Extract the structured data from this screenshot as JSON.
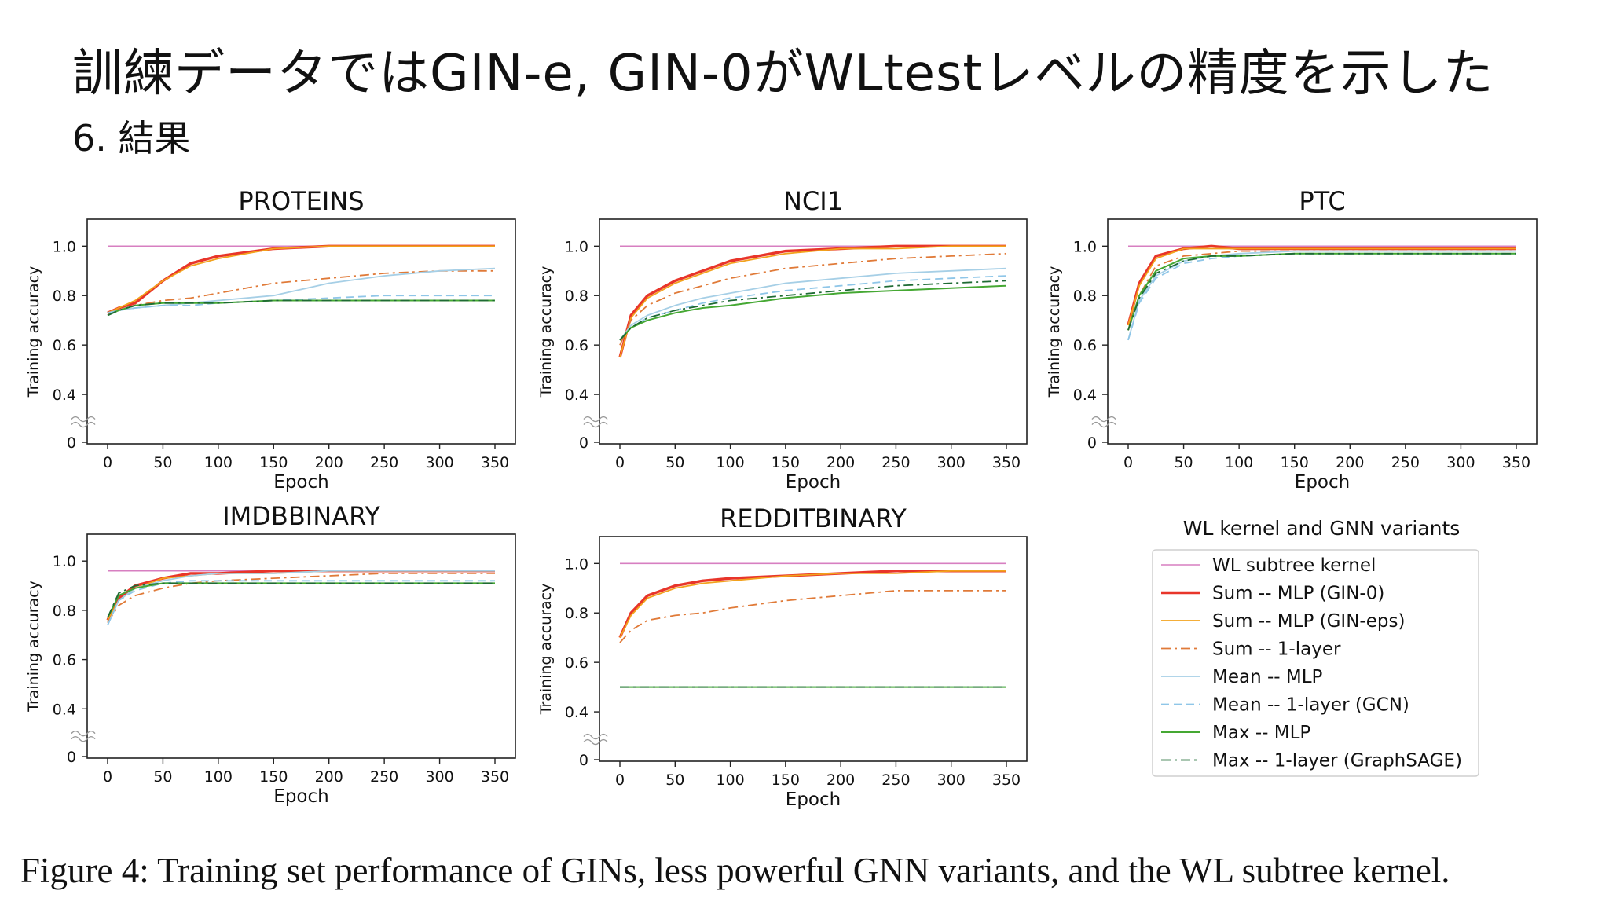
{
  "slide": {
    "title": "訓練データではGIN-e, GIN-0がWLtestレベルの精度を示した",
    "subtitle": "6. 結果",
    "caption": "Figure 4: Training set performance of GINs, less powerful GNN variants, and the WL subtree kernel."
  },
  "legend": {
    "title": "WL kernel and GNN variants",
    "entries": [
      {
        "label": "WL subtree kernel",
        "color": "#d77fc1",
        "style": "solid",
        "width": 1.6
      },
      {
        "label": "Sum -- MLP (GIN-0)",
        "color": "#e8352a",
        "style": "solid",
        "width": 3.4
      },
      {
        "label": "Sum -- MLP (GIN-eps)",
        "color": "#f2a21d",
        "style": "solid",
        "width": 1.8
      },
      {
        "label": "Sum -- 1-layer",
        "color": "#e07a38",
        "style": "dashdot",
        "width": 1.8
      },
      {
        "label": "Mean -- MLP",
        "color": "#a6cfe6",
        "style": "solid",
        "width": 1.8
      },
      {
        "label": "Mean -- 1-layer (GCN)",
        "color": "#8fc6e8",
        "style": "dashed",
        "width": 1.8
      },
      {
        "label": "Max -- MLP",
        "color": "#45a833",
        "style": "solid",
        "width": 2.0
      },
      {
        "label": "Max -- 1-layer (GraphSAGE)",
        "color": "#1f6b34",
        "style": "dashdot",
        "width": 1.8
      }
    ]
  },
  "chart_data": [
    {
      "type": "line",
      "title": "PROTEINS",
      "xlabel": "Epoch",
      "ylabel": "Training accuracy",
      "xlim": [
        0,
        350
      ],
      "ylim": [
        0,
        1.1
      ],
      "axis_break": "between 0 and 0.4",
      "xticks": [
        "0",
        "50",
        "100",
        "150",
        "200",
        "250",
        "300",
        "350"
      ],
      "yticks": [
        "0",
        "0.4",
        "0.6",
        "0.8",
        "1.0"
      ],
      "x": [
        0,
        10,
        25,
        50,
        75,
        100,
        150,
        200,
        250,
        300,
        350
      ],
      "series": [
        {
          "name": "WL subtree kernel",
          "values": [
            1.0,
            1.0,
            1.0,
            1.0,
            1.0,
            1.0,
            1.0,
            1.0,
            1.0,
            1.0,
            1.0
          ]
        },
        {
          "name": "Sum -- MLP (GIN-0)",
          "values": [
            0.73,
            0.75,
            0.77,
            0.86,
            0.93,
            0.96,
            0.99,
            1.0,
            1.0,
            1.0,
            1.0
          ]
        },
        {
          "name": "Sum -- MLP (GIN-eps)",
          "values": [
            0.73,
            0.75,
            0.78,
            0.86,
            0.92,
            0.95,
            0.99,
            1.0,
            1.0,
            1.0,
            1.0
          ]
        },
        {
          "name": "Sum -- 1-layer",
          "values": [
            0.73,
            0.74,
            0.76,
            0.78,
            0.79,
            0.81,
            0.85,
            0.87,
            0.89,
            0.9,
            0.9
          ]
        },
        {
          "name": "Mean -- MLP",
          "values": [
            0.73,
            0.74,
            0.75,
            0.76,
            0.77,
            0.78,
            0.8,
            0.85,
            0.88,
            0.9,
            0.91
          ]
        },
        {
          "name": "Mean -- 1-layer (GCN)",
          "values": [
            0.73,
            0.74,
            0.75,
            0.76,
            0.76,
            0.77,
            0.78,
            0.79,
            0.8,
            0.8,
            0.8
          ]
        },
        {
          "name": "Max -- MLP",
          "values": [
            0.72,
            0.74,
            0.76,
            0.77,
            0.77,
            0.77,
            0.78,
            0.78,
            0.78,
            0.78,
            0.78
          ]
        },
        {
          "name": "Max -- 1-layer (GraphSAGE)",
          "values": [
            0.72,
            0.74,
            0.76,
            0.77,
            0.77,
            0.77,
            0.78,
            0.78,
            0.78,
            0.78,
            0.78
          ]
        }
      ]
    },
    {
      "type": "line",
      "title": "NCI1",
      "xlabel": "Epoch",
      "ylabel": "Training accuracy",
      "xlim": [
        0,
        350
      ],
      "ylim": [
        0,
        1.1
      ],
      "axis_break": "between 0 and 0.4",
      "xticks": [
        "0",
        "50",
        "100",
        "150",
        "200",
        "250",
        "300",
        "350"
      ],
      "yticks": [
        "0",
        "0.4",
        "0.6",
        "0.8",
        "1.0"
      ],
      "x": [
        0,
        10,
        25,
        50,
        75,
        100,
        150,
        200,
        250,
        300,
        350
      ],
      "series": [
        {
          "name": "WL subtree kernel",
          "values": [
            1.0,
            1.0,
            1.0,
            1.0,
            1.0,
            1.0,
            1.0,
            1.0,
            1.0,
            1.0,
            1.0
          ]
        },
        {
          "name": "Sum -- MLP (GIN-0)",
          "values": [
            0.55,
            0.72,
            0.8,
            0.86,
            0.9,
            0.94,
            0.98,
            0.99,
            1.0,
            1.0,
            1.0
          ]
        },
        {
          "name": "Sum -- MLP (GIN-eps)",
          "values": [
            0.55,
            0.71,
            0.79,
            0.85,
            0.89,
            0.93,
            0.97,
            0.99,
            0.99,
            1.0,
            1.0
          ]
        },
        {
          "name": "Sum -- 1-layer",
          "values": [
            0.6,
            0.7,
            0.76,
            0.81,
            0.84,
            0.87,
            0.91,
            0.93,
            0.95,
            0.96,
            0.97
          ]
        },
        {
          "name": "Mean -- MLP",
          "values": [
            0.62,
            0.68,
            0.72,
            0.76,
            0.79,
            0.81,
            0.85,
            0.87,
            0.89,
            0.9,
            0.91
          ]
        },
        {
          "name": "Mean -- 1-layer (GCN)",
          "values": [
            0.62,
            0.67,
            0.71,
            0.74,
            0.77,
            0.79,
            0.82,
            0.84,
            0.86,
            0.87,
            0.88
          ]
        },
        {
          "name": "Max -- MLP",
          "values": [
            0.62,
            0.67,
            0.7,
            0.73,
            0.75,
            0.76,
            0.79,
            0.81,
            0.82,
            0.83,
            0.84
          ]
        },
        {
          "name": "Max -- 1-layer (GraphSAGE)",
          "values": [
            0.62,
            0.67,
            0.71,
            0.74,
            0.76,
            0.78,
            0.8,
            0.82,
            0.84,
            0.85,
            0.86
          ]
        }
      ]
    },
    {
      "type": "line",
      "title": "PTC",
      "xlabel": "Epoch",
      "ylabel": "Training accuracy",
      "xlim": [
        0,
        350
      ],
      "ylim": [
        0,
        1.1
      ],
      "axis_break": "between 0 and 0.4",
      "xticks": [
        "0",
        "50",
        "100",
        "150",
        "200",
        "250",
        "300",
        "350"
      ],
      "yticks": [
        "0",
        "0.4",
        "0.6",
        "0.8",
        "1.0"
      ],
      "x": [
        0,
        10,
        25,
        50,
        75,
        100,
        150,
        200,
        250,
        300,
        350
      ],
      "series": [
        {
          "name": "WL subtree kernel",
          "values": [
            1.0,
            1.0,
            1.0,
            1.0,
            1.0,
            1.0,
            1.0,
            1.0,
            1.0,
            1.0,
            1.0
          ]
        },
        {
          "name": "Sum -- MLP (GIN-0)",
          "values": [
            0.68,
            0.85,
            0.96,
            0.99,
            1.0,
            0.99,
            0.99,
            0.99,
            0.99,
            0.99,
            0.99
          ]
        },
        {
          "name": "Sum -- MLP (GIN-eps)",
          "values": [
            0.68,
            0.84,
            0.95,
            0.99,
            0.99,
            0.99,
            0.99,
            0.99,
            0.99,
            0.99,
            0.99
          ]
        },
        {
          "name": "Sum -- 1-layer",
          "values": [
            0.66,
            0.8,
            0.92,
            0.96,
            0.97,
            0.98,
            0.98,
            0.98,
            0.98,
            0.98,
            0.98
          ]
        },
        {
          "name": "Mean -- MLP",
          "values": [
            0.62,
            0.78,
            0.88,
            0.94,
            0.96,
            0.97,
            0.98,
            0.98,
            0.98,
            0.98,
            0.98
          ]
        },
        {
          "name": "Mean -- 1-layer (GCN)",
          "values": [
            0.62,
            0.77,
            0.87,
            0.93,
            0.95,
            0.96,
            0.97,
            0.97,
            0.97,
            0.97,
            0.97
          ]
        },
        {
          "name": "Max -- MLP",
          "values": [
            0.66,
            0.8,
            0.9,
            0.95,
            0.96,
            0.96,
            0.97,
            0.97,
            0.97,
            0.97,
            0.97
          ]
        },
        {
          "name": "Max -- 1-layer (GraphSAGE)",
          "values": [
            0.66,
            0.79,
            0.89,
            0.94,
            0.96,
            0.96,
            0.97,
            0.97,
            0.97,
            0.97,
            0.97
          ]
        }
      ]
    },
    {
      "type": "line",
      "title": "IMDBBINARY",
      "xlabel": "Epoch",
      "ylabel": "Training accuracy",
      "xlim": [
        0,
        350
      ],
      "ylim": [
        0,
        1.1
      ],
      "axis_break": "between 0 and 0.4",
      "xticks": [
        "0",
        "50",
        "100",
        "150",
        "200",
        "250",
        "300",
        "350"
      ],
      "yticks": [
        "0",
        "0.4",
        "0.6",
        "0.8",
        "1.0"
      ],
      "x": [
        0,
        10,
        25,
        50,
        75,
        100,
        150,
        200,
        250,
        300,
        350
      ],
      "series": [
        {
          "name": "WL subtree kernel",
          "values": [
            0.96,
            0.96,
            0.96,
            0.96,
            0.96,
            0.96,
            0.96,
            0.96,
            0.96,
            0.96,
            0.96
          ]
        },
        {
          "name": "Sum -- MLP (GIN-0)",
          "values": [
            0.76,
            0.85,
            0.9,
            0.93,
            0.95,
            0.95,
            0.96,
            0.96,
            0.96,
            0.96,
            0.96
          ]
        },
        {
          "name": "Sum -- MLP (GIN-eps)",
          "values": [
            0.76,
            0.84,
            0.89,
            0.93,
            0.94,
            0.95,
            0.95,
            0.96,
            0.96,
            0.96,
            0.96
          ]
        },
        {
          "name": "Sum -- 1-layer",
          "values": [
            0.75,
            0.82,
            0.86,
            0.89,
            0.91,
            0.92,
            0.93,
            0.94,
            0.95,
            0.95,
            0.95
          ]
        },
        {
          "name": "Mean -- MLP",
          "values": [
            0.74,
            0.84,
            0.89,
            0.92,
            0.94,
            0.95,
            0.95,
            0.96,
            0.96,
            0.96,
            0.96
          ]
        },
        {
          "name": "Mean -- 1-layer (GCN)",
          "values": [
            0.74,
            0.84,
            0.88,
            0.91,
            0.92,
            0.92,
            0.92,
            0.92,
            0.92,
            0.92,
            0.92
          ]
        },
        {
          "name": "Max -- MLP",
          "values": [
            0.77,
            0.86,
            0.89,
            0.91,
            0.91,
            0.91,
            0.91,
            0.91,
            0.91,
            0.91,
            0.91
          ]
        },
        {
          "name": "Max -- 1-layer (GraphSAGE)",
          "values": [
            0.77,
            0.87,
            0.9,
            0.91,
            0.91,
            0.91,
            0.91,
            0.91,
            0.91,
            0.91,
            0.91
          ]
        }
      ]
    },
    {
      "type": "line",
      "title": "REDDITBINARY",
      "xlabel": "Epoch",
      "ylabel": "Training accuracy",
      "xlim": [
        0,
        350
      ],
      "ylim": [
        0,
        1.1
      ],
      "axis_break": "between 0 and 0.4",
      "xticks": [
        "0",
        "50",
        "100",
        "150",
        "200",
        "250",
        "300",
        "350"
      ],
      "yticks": [
        "0",
        "0.4",
        "0.6",
        "0.8",
        "1.0"
      ],
      "x": [
        0,
        10,
        25,
        50,
        75,
        100,
        150,
        200,
        250,
        300,
        350
      ],
      "series": [
        {
          "name": "WL subtree kernel",
          "values": [
            1.0,
            1.0,
            1.0,
            1.0,
            1.0,
            1.0,
            1.0,
            1.0,
            1.0,
            1.0,
            1.0
          ]
        },
        {
          "name": "Sum -- MLP (GIN-0)",
          "values": [
            0.7,
            0.8,
            0.87,
            0.91,
            0.93,
            0.94,
            0.95,
            0.96,
            0.97,
            0.97,
            0.97
          ]
        },
        {
          "name": "Sum -- MLP (GIN-eps)",
          "values": [
            0.7,
            0.79,
            0.86,
            0.9,
            0.92,
            0.93,
            0.95,
            0.96,
            0.96,
            0.97,
            0.97
          ]
        },
        {
          "name": "Sum -- 1-layer",
          "values": [
            0.68,
            0.73,
            0.77,
            0.79,
            0.8,
            0.82,
            0.85,
            0.87,
            0.89,
            0.89,
            0.89
          ]
        },
        {
          "name": "Mean -- MLP",
          "values": [
            0.5,
            0.5,
            0.5,
            0.5,
            0.5,
            0.5,
            0.5,
            0.5,
            0.5,
            0.5,
            0.5
          ]
        },
        {
          "name": "Mean -- 1-layer (GCN)",
          "values": [
            0.5,
            0.5,
            0.5,
            0.5,
            0.5,
            0.5,
            0.5,
            0.5,
            0.5,
            0.5,
            0.5
          ]
        },
        {
          "name": "Max -- MLP",
          "values": [
            0.5,
            0.5,
            0.5,
            0.5,
            0.5,
            0.5,
            0.5,
            0.5,
            0.5,
            0.5,
            0.5
          ]
        },
        {
          "name": "Max -- 1-layer (GraphSAGE)",
          "values": [
            0.5,
            0.5,
            0.5,
            0.5,
            0.5,
            0.5,
            0.5,
            0.5,
            0.5,
            0.5,
            0.5
          ]
        }
      ]
    }
  ]
}
